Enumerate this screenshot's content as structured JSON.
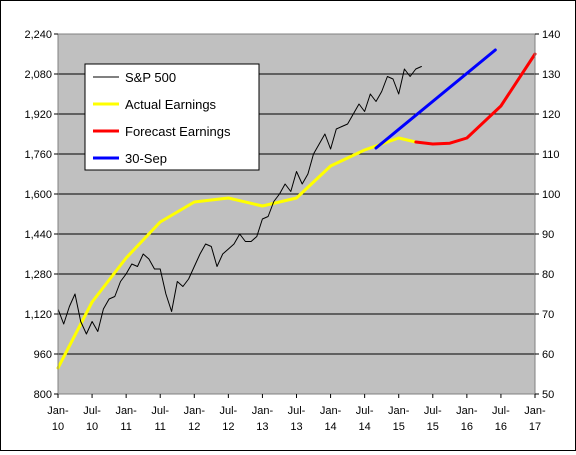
{
  "chart_data": {
    "type": "line",
    "y_left": {
      "min": 800,
      "max": 2240,
      "ticks": [
        "800",
        "960",
        "1,120",
        "1,280",
        "1,440",
        "1,600",
        "1,760",
        "1,920",
        "2,080",
        "2,240"
      ]
    },
    "y_right": {
      "min": 50,
      "max": 140,
      "ticks": [
        "50",
        "60",
        "70",
        "80",
        "90",
        "100",
        "110",
        "120",
        "130",
        "140"
      ]
    },
    "x_ticks": [
      {
        "top": "Jan-",
        "bottom": "10"
      },
      {
        "top": "Jul-",
        "bottom": "10"
      },
      {
        "top": "Jan-",
        "bottom": "11"
      },
      {
        "top": "Jul-",
        "bottom": "11"
      },
      {
        "top": "Jan-",
        "bottom": "12"
      },
      {
        "top": "Jul-",
        "bottom": "12"
      },
      {
        "top": "Jan-",
        "bottom": "13"
      },
      {
        "top": "Jul-",
        "bottom": "13"
      },
      {
        "top": "Jan-",
        "bottom": "14"
      },
      {
        "top": "Jul-",
        "bottom": "14"
      },
      {
        "top": "Jan-",
        "bottom": "15"
      },
      {
        "top": "Jul-",
        "bottom": "15"
      },
      {
        "top": "Jan-",
        "bottom": "16"
      },
      {
        "top": "Jul-",
        "bottom": "16"
      },
      {
        "top": "Jan-",
        "bottom": "17"
      }
    ],
    "x_range": [
      "2010-01",
      "2017-01"
    ],
    "grid": true,
    "legend_position": "top-left",
    "plot_background": "#c0c0c0",
    "series": [
      {
        "name": "S&P 500",
        "axis": "left",
        "color": "#000000",
        "points": [
          [
            "2010-01",
            1140
          ],
          [
            "2010-02",
            1080
          ],
          [
            "2010-03",
            1150
          ],
          [
            "2010-04",
            1200
          ],
          [
            "2010-05",
            1090
          ],
          [
            "2010-06",
            1040
          ],
          [
            "2010-07",
            1090
          ],
          [
            "2010-08",
            1050
          ],
          [
            "2010-09",
            1140
          ],
          [
            "2010-10",
            1180
          ],
          [
            "2010-11",
            1190
          ],
          [
            "2010-12",
            1250
          ],
          [
            "2011-01",
            1280
          ],
          [
            "2011-02",
            1320
          ],
          [
            "2011-03",
            1310
          ],
          [
            "2011-04",
            1360
          ],
          [
            "2011-05",
            1340
          ],
          [
            "2011-06",
            1300
          ],
          [
            "2011-07",
            1300
          ],
          [
            "2011-08",
            1200
          ],
          [
            "2011-09",
            1130
          ],
          [
            "2011-10",
            1250
          ],
          [
            "2011-11",
            1230
          ],
          [
            "2011-12",
            1260
          ],
          [
            "2012-01",
            1310
          ],
          [
            "2012-02",
            1360
          ],
          [
            "2012-03",
            1400
          ],
          [
            "2012-04",
            1390
          ],
          [
            "2012-05",
            1310
          ],
          [
            "2012-06",
            1360
          ],
          [
            "2012-07",
            1380
          ],
          [
            "2012-08",
            1400
          ],
          [
            "2012-09",
            1440
          ],
          [
            "2012-10",
            1410
          ],
          [
            "2012-11",
            1410
          ],
          [
            "2012-12",
            1430
          ],
          [
            "2013-01",
            1500
          ],
          [
            "2013-02",
            1510
          ],
          [
            "2013-03",
            1570
          ],
          [
            "2013-04",
            1600
          ],
          [
            "2013-05",
            1640
          ],
          [
            "2013-06",
            1610
          ],
          [
            "2013-07",
            1690
          ],
          [
            "2013-08",
            1640
          ],
          [
            "2013-09",
            1680
          ],
          [
            "2013-10",
            1760
          ],
          [
            "2013-11",
            1800
          ],
          [
            "2013-12",
            1840
          ],
          [
            "2014-01",
            1780
          ],
          [
            "2014-02",
            1860
          ],
          [
            "2014-03",
            1870
          ],
          [
            "2014-04",
            1880
          ],
          [
            "2014-05",
            1920
          ],
          [
            "2014-06",
            1960
          ],
          [
            "2014-07",
            1930
          ],
          [
            "2014-08",
            2000
          ],
          [
            "2014-09",
            1970
          ],
          [
            "2014-10",
            2010
          ],
          [
            "2014-11",
            2070
          ],
          [
            "2014-12",
            2060
          ],
          [
            "2015-01",
            2000
          ],
          [
            "2015-02",
            2100
          ],
          [
            "2015-03",
            2070
          ],
          [
            "2015-04",
            2100
          ],
          [
            "2015-05",
            2110
          ]
        ]
      },
      {
        "name": "Actual Earnings",
        "axis": "right",
        "color": "#ffff00",
        "points": [
          [
            "2010-01",
            56.5
          ],
          [
            "2010-07",
            73
          ],
          [
            "2011-01",
            84
          ],
          [
            "2011-07",
            93
          ],
          [
            "2012-01",
            98
          ],
          [
            "2012-07",
            99
          ],
          [
            "2013-01",
            97
          ],
          [
            "2013-07",
            99
          ],
          [
            "2014-01",
            107
          ],
          [
            "2014-07",
            111
          ],
          [
            "2015-01",
            114
          ],
          [
            "2015-04",
            113
          ]
        ]
      },
      {
        "name": "Forecast Earnings",
        "axis": "right",
        "color": "#ff0000",
        "points": [
          [
            "2015-04",
            113
          ],
          [
            "2015-07",
            112.5
          ],
          [
            "2015-10",
            112.7
          ],
          [
            "2016-01",
            114
          ],
          [
            "2016-07",
            122
          ],
          [
            "2017-01",
            135
          ]
        ]
      },
      {
        "name": "30-Sep",
        "axis": "right",
        "color": "#0000ff",
        "points": [
          [
            "2014-09",
            111.5
          ],
          [
            "2016-06",
            136
          ]
        ]
      }
    ]
  }
}
